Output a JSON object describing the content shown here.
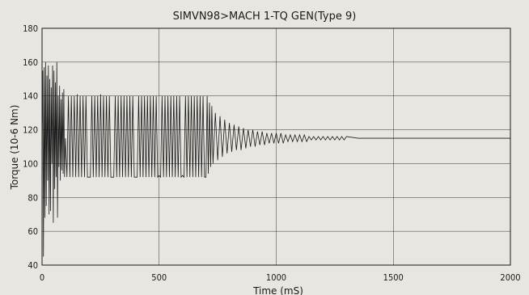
{
  "chart_data": {
    "type": "line",
    "title": "SIMVN98>MACH 1-TQ GEN(Type 9)",
    "xlabel": "Time (mS)",
    "ylabel": "Torque (10-6 Nm)",
    "xlim": [
      0,
      2000
    ],
    "ylim": [
      40,
      180
    ],
    "x_ticks": [
      0,
      500,
      1000,
      1500,
      2000
    ],
    "y_ticks": [
      40,
      60,
      80,
      100,
      120,
      140,
      160,
      180
    ],
    "x_tick_labels": [
      "0",
      "500",
      "1000",
      "1500",
      "2000"
    ],
    "y_tick_labels": [
      "40",
      "60",
      "80",
      "100",
      "120",
      "140",
      "160",
      "180"
    ],
    "grid": true,
    "legend": "none",
    "series": [
      {
        "line_color": "#1a1a1a",
        "x": [
          0,
          3,
          6,
          9,
          12,
          15,
          18,
          21,
          24,
          27,
          30,
          33,
          36,
          39,
          42,
          45,
          48,
          51,
          54,
          57,
          60,
          63,
          66,
          69,
          72,
          75,
          78,
          81,
          84,
          87,
          90,
          93,
          96,
          100,
          150,
          200,
          250,
          300,
          350,
          400,
          450,
          500,
          550,
          600,
          650,
          700,
          705,
          710,
          715,
          720,
          725,
          730,
          740,
          750,
          760,
          770,
          780,
          790,
          800,
          810,
          820,
          830,
          840,
          850,
          860,
          870,
          880,
          890,
          900,
          910,
          920,
          930,
          940,
          950,
          960,
          970,
          980,
          990,
          1000,
          1010,
          1020,
          1030,
          1040,
          1050,
          1060,
          1070,
          1080,
          1090,
          1100,
          1110,
          1120,
          1130,
          1140,
          1150,
          1160,
          1170,
          1180,
          1190,
          1200,
          1210,
          1220,
          1230,
          1240,
          1250,
          1260,
          1270,
          1280,
          1290,
          1300,
          1350,
          1400,
          1450,
          1500,
          1550,
          1600,
          1650,
          1700,
          1750,
          1800,
          1850,
          1900,
          1950,
          2000
        ],
        "y": [
          115,
          155,
          45,
          157,
          68,
          160,
          75,
          152,
          90,
          158,
          70,
          150,
          72,
          145,
          100,
          158,
          65,
          155,
          85,
          148,
          92,
          160,
          68,
          140,
          98,
          146,
          90,
          138,
          96,
          142,
          94,
          144,
          92,
          115,
          141,
          92,
          141,
          92,
          140,
          92,
          140,
          93,
          140,
          93,
          140,
          92,
          140,
          94,
          136,
          98,
          134,
          100,
          130,
          102,
          128,
          104,
          126,
          106,
          124,
          107,
          123,
          108,
          122,
          108,
          121,
          109,
          120,
          110,
          120,
          110,
          119,
          111,
          119,
          111,
          118,
          112,
          118,
          112,
          118,
          112,
          118,
          112,
          117,
          113,
          117,
          113,
          117,
          113,
          117,
          113,
          117,
          113,
          116,
          114,
          116,
          114,
          116,
          114,
          116,
          114,
          116,
          114,
          116,
          114,
          116,
          114,
          116,
          114,
          116,
          115,
          115,
          115,
          115,
          115,
          115,
          115,
          115,
          115,
          115,
          115,
          115,
          115,
          115
        ]
      }
    ]
  }
}
